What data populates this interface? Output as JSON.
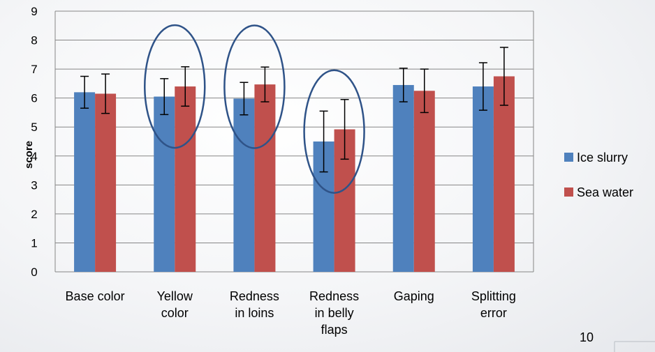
{
  "slide": {
    "page_number": "10"
  },
  "colors": {
    "ice": "#4F81BD",
    "sea": "#C0504D",
    "ellipse": "#2F5388"
  },
  "chart_data": {
    "type": "bar",
    "title": "",
    "xlabel": "",
    "ylabel": "score",
    "ylim": [
      0,
      9
    ],
    "yticks": [
      "0",
      "1",
      "2",
      "3",
      "4",
      "5",
      "6",
      "7",
      "8",
      "9"
    ],
    "grid": true,
    "legend_position": "right",
    "categories": [
      [
        "Base color"
      ],
      [
        "Yellow",
        "color"
      ],
      [
        "Redness",
        "in loins"
      ],
      [
        "Redness",
        "in belly",
        "flaps"
      ],
      [
        "Gaping"
      ],
      [
        "Splitting",
        "error"
      ]
    ],
    "series": [
      {
        "name": "Ice slurry",
        "values": [
          6.2,
          6.05,
          5.98,
          4.5,
          6.45,
          6.4
        ],
        "errors": [
          0.55,
          0.62,
          0.56,
          1.05,
          0.58,
          0.82
        ]
      },
      {
        "name": "Sea water",
        "values": [
          6.15,
          6.4,
          6.47,
          4.92,
          6.25,
          6.75
        ],
        "errors": [
          0.68,
          0.68,
          0.6,
          1.03,
          0.75,
          1.0
        ]
      }
    ],
    "highlighted_categories": [
      1,
      2,
      3
    ]
  }
}
